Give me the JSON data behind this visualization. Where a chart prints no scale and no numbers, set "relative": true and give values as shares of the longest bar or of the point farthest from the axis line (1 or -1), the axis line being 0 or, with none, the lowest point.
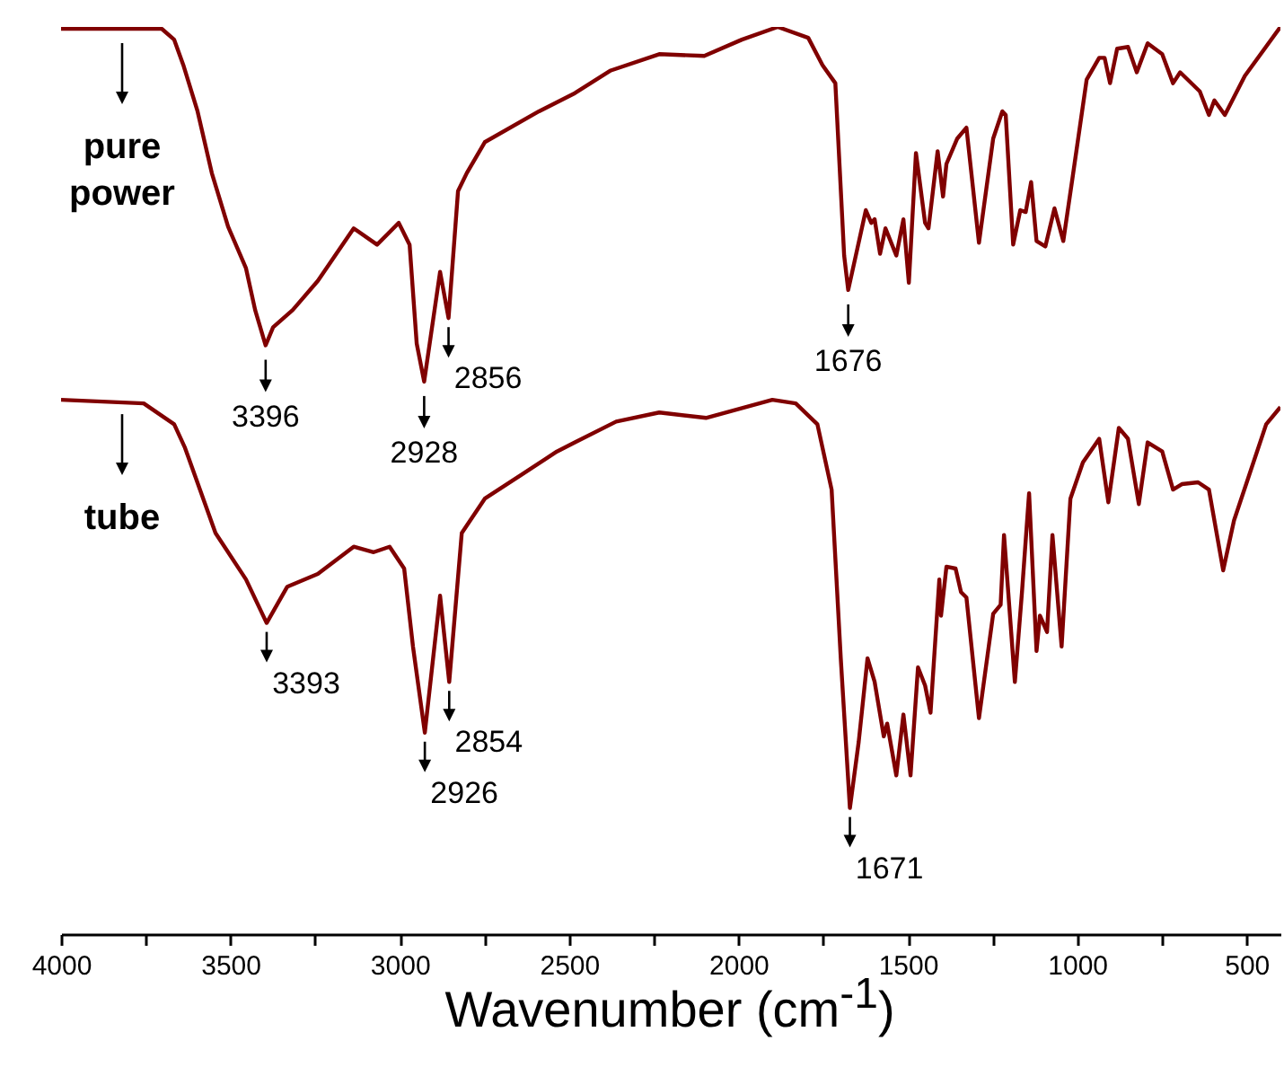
{
  "chart_data": {
    "type": "line",
    "relative": true,
    "xlabel": "Wavenumber (cm$^{-1}$)",
    "xlim": [
      4000,
      400
    ],
    "xticks": [
      4000,
      {
        "value": 3750,
        "label": null
      },
      3500,
      {
        "value": 3250,
        "label": null
      },
      3000,
      {
        "value": 2750,
        "label": null
      },
      2500,
      {
        "value": 2250,
        "label": null
      },
      2000,
      {
        "value": 1750,
        "label": null
      },
      1500,
      {
        "value": 1250,
        "label": null
      },
      1000,
      {
        "value": 750,
        "label": null
      },
      500
    ],
    "series": [
      {
        "name": "pure power",
        "color": "#800000",
        "x": [
          4000,
          3862,
          3703,
          3666,
          3639,
          3597,
          3555,
          3507,
          3454,
          3427,
          3396,
          3374,
          3316,
          3242,
          3136,
          3067,
          3003,
          2971,
          2950,
          2928,
          2881,
          2856,
          2828,
          2802,
          2749,
          2589,
          2483,
          2377,
          2234,
          2101,
          1990,
          1884,
          1794,
          1752,
          1714,
          1688,
          1676,
          1624,
          1608,
          1598,
          1582,
          1566,
          1534,
          1513,
          1497,
          1476,
          1449,
          1439,
          1412,
          1396,
          1386,
          1354,
          1327,
          1290,
          1248,
          1221,
          1211,
          1189,
          1168,
          1152,
          1136,
          1120,
          1094,
          1067,
          1041,
          1014,
          972,
          935,
          919,
          903,
          882,
          850,
          824,
          792,
          749,
          717,
          696,
          638,
          611,
          595,
          564,
          505,
          400
        ],
        "values": [
          0.998,
          0.998,
          0.998,
          0.986,
          0.958,
          0.907,
          0.839,
          0.78,
          0.734,
          0.688,
          0.649,
          0.669,
          0.688,
          0.72,
          0.778,
          0.76,
          0.784,
          0.76,
          0.651,
          0.609,
          0.73,
          0.679,
          0.819,
          0.839,
          0.873,
          0.907,
          0.927,
          0.952,
          0.97,
          0.968,
          0.986,
          1.0,
          0.988,
          0.958,
          0.938,
          0.748,
          0.71,
          0.798,
          0.784,
          0.788,
          0.75,
          0.778,
          0.748,
          0.788,
          0.718,
          0.861,
          0.784,
          0.778,
          0.863,
          0.813,
          0.849,
          0.877,
          0.889,
          0.762,
          0.877,
          0.907,
          0.903,
          0.76,
          0.798,
          0.796,
          0.829,
          0.764,
          0.758,
          0.8,
          0.764,
          0.833,
          0.942,
          0.966,
          0.966,
          0.938,
          0.976,
          0.978,
          0.95,
          0.982,
          0.97,
          0.938,
          0.95,
          0.929,
          0.903,
          0.919,
          0.903,
          0.946,
          1.0
        ]
      },
      {
        "name": "tube",
        "color": "#800000",
        "x": [
          4000,
          3756,
          3666,
          3634,
          3544,
          3454,
          3393,
          3332,
          3242,
          3136,
          3077,
          3030,
          2987,
          2961,
          2926,
          2881,
          2854,
          2817,
          2749,
          2642,
          2536,
          2483,
          2361,
          2234,
          2096,
          1900,
          1831,
          1767,
          1725,
          1698,
          1671,
          1645,
          1619,
          1598,
          1571,
          1561,
          1534,
          1513,
          1492,
          1470,
          1449,
          1433,
          1407,
          1402,
          1386,
          1359,
          1343,
          1327,
          1290,
          1248,
          1226,
          1216,
          1184,
          1163,
          1142,
          1120,
          1110,
          1089,
          1073,
          1046,
          1020,
          983,
          935,
          908,
          877,
          850,
          818,
          792,
          749,
          717,
          691,
          643,
          611,
          569,
          537,
          442,
          400
        ],
        "values": [
          0.589,
          0.585,
          0.562,
          0.536,
          0.442,
          0.391,
          0.343,
          0.383,
          0.397,
          0.427,
          0.421,
          0.427,
          0.403,
          0.317,
          0.222,
          0.373,
          0.278,
          0.442,
          0.48,
          0.506,
          0.532,
          0.542,
          0.565,
          0.575,
          0.569,
          0.589,
          0.585,
          0.562,
          0.49,
          0.304,
          0.139,
          0.212,
          0.304,
          0.278,
          0.218,
          0.232,
          0.175,
          0.242,
          0.175,
          0.294,
          0.274,
          0.244,
          0.391,
          0.351,
          0.405,
          0.403,
          0.377,
          0.371,
          0.238,
          0.353,
          0.363,
          0.44,
          0.278,
          0.377,
          0.486,
          0.312,
          0.351,
          0.333,
          0.44,
          0.317,
          0.48,
          0.52,
          0.546,
          0.476,
          0.558,
          0.546,
          0.474,
          0.542,
          0.532,
          0.49,
          0.496,
          0.498,
          0.49,
          0.401,
          0.456,
          0.562,
          0.581
        ]
      }
    ],
    "annotations": [
      {
        "text": "3396",
        "x": 3396,
        "y": 0.649
      },
      {
        "text": "2928",
        "x": 2928,
        "y": 0.609
      },
      {
        "text": "2856",
        "x": 2856,
        "y": 0.679
      },
      {
        "text": "1676",
        "x": 1676,
        "y": 0.71
      },
      {
        "text": "3393",
        "x": 3393,
        "y": 0.343
      },
      {
        "text": "2926",
        "x": 2926,
        "y": 0.222
      },
      {
        "text": "2854",
        "x": 2854,
        "y": 0.278
      },
      {
        "text": "1671",
        "x": 1671,
        "y": 0.139
      }
    ]
  }
}
